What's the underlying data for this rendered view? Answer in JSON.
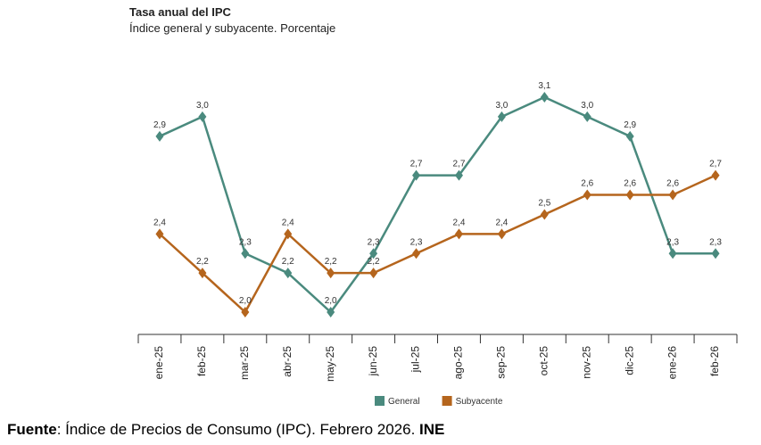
{
  "chart_data": {
    "type": "line",
    "title": "Tasa anual del IPC",
    "subtitle": "Índice general y subyacente. Porcentaje",
    "categories": [
      "ene-25",
      "feb-25",
      "mar-25",
      "abr-25",
      "may-25",
      "jun-25",
      "jul-25",
      "ago-25",
      "sep-25",
      "oct-25",
      "nov-25",
      "dic-25",
      "ene-26",
      "feb-26"
    ],
    "series": [
      {
        "name": "General",
        "color": "#4a8a7e",
        "values": [
          2.9,
          3.0,
          2.3,
          2.2,
          2.0,
          2.3,
          2.7,
          2.7,
          3.0,
          3.1,
          3.0,
          2.9,
          2.3,
          2.3
        ],
        "value_labels": [
          "2,9",
          "3,0",
          "2,3",
          "2,2",
          "2,0",
          "2,3",
          "2,7",
          "2,7",
          "3,0",
          "3,1",
          "3,0",
          "2,9",
          "2,3",
          "2,3"
        ]
      },
      {
        "name": "Subyacente",
        "color": "#b5651d",
        "values": [
          2.4,
          2.2,
          2.0,
          2.4,
          2.2,
          2.2,
          2.3,
          2.4,
          2.4,
          2.5,
          2.6,
          2.6,
          2.6,
          2.7
        ],
        "value_labels": [
          "2,4",
          "2,2",
          "2,0",
          "2,4",
          "2,2",
          "2,2",
          "2,3",
          "2,4",
          "2,4",
          "2,5",
          "2,6",
          "2,6",
          "2,6",
          "2,7"
        ]
      }
    ],
    "legend": "bottom"
  },
  "footer": {
    "label": "Fuente",
    "text": ": Índice de Precios de Consumo (IPC). Febrero 2026. ",
    "source": "INE"
  }
}
